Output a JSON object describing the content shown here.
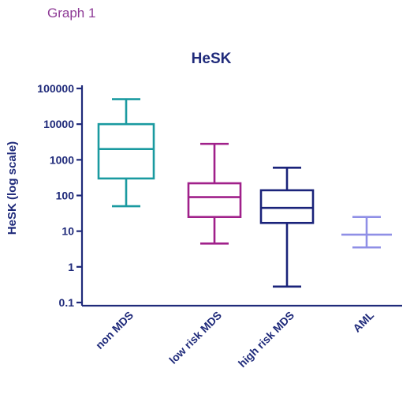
{
  "page_label": "Graph 1",
  "chart_data": {
    "type": "box",
    "title": "HeSK",
    "ylabel": "HeSK (log scale)",
    "xlabel": "",
    "y_scale": "log",
    "ylim": [
      0.1,
      100000
    ],
    "y_ticks": [
      "100000",
      "10000",
      "1000",
      "100",
      "10",
      "1",
      "0.1"
    ],
    "y_tick_values": [
      100000,
      10000,
      1000,
      100,
      10,
      1,
      0.1
    ],
    "grid": false,
    "categories": [
      "non MDS",
      "low risk MDS",
      "high risk MDS",
      "AML"
    ],
    "boxes": [
      {
        "category": "non MDS",
        "min": 50,
        "q1": 300,
        "median": 2000,
        "q3": 10000,
        "max": 50000,
        "color": "#1a9aa0"
      },
      {
        "category": "low risk MDS",
        "min": 4.5,
        "q1": 25,
        "median": 90,
        "q3": 220,
        "max": 2800,
        "color": "#a0208a"
      },
      {
        "category": "high risk MDS",
        "min": 0.28,
        "q1": 17,
        "median": 45,
        "q3": 140,
        "max": 600,
        "color": "#1a237a"
      },
      {
        "category": "AML",
        "min": 3.5,
        "median": 8,
        "max": 25,
        "color": "#8f8fe6"
      }
    ]
  }
}
